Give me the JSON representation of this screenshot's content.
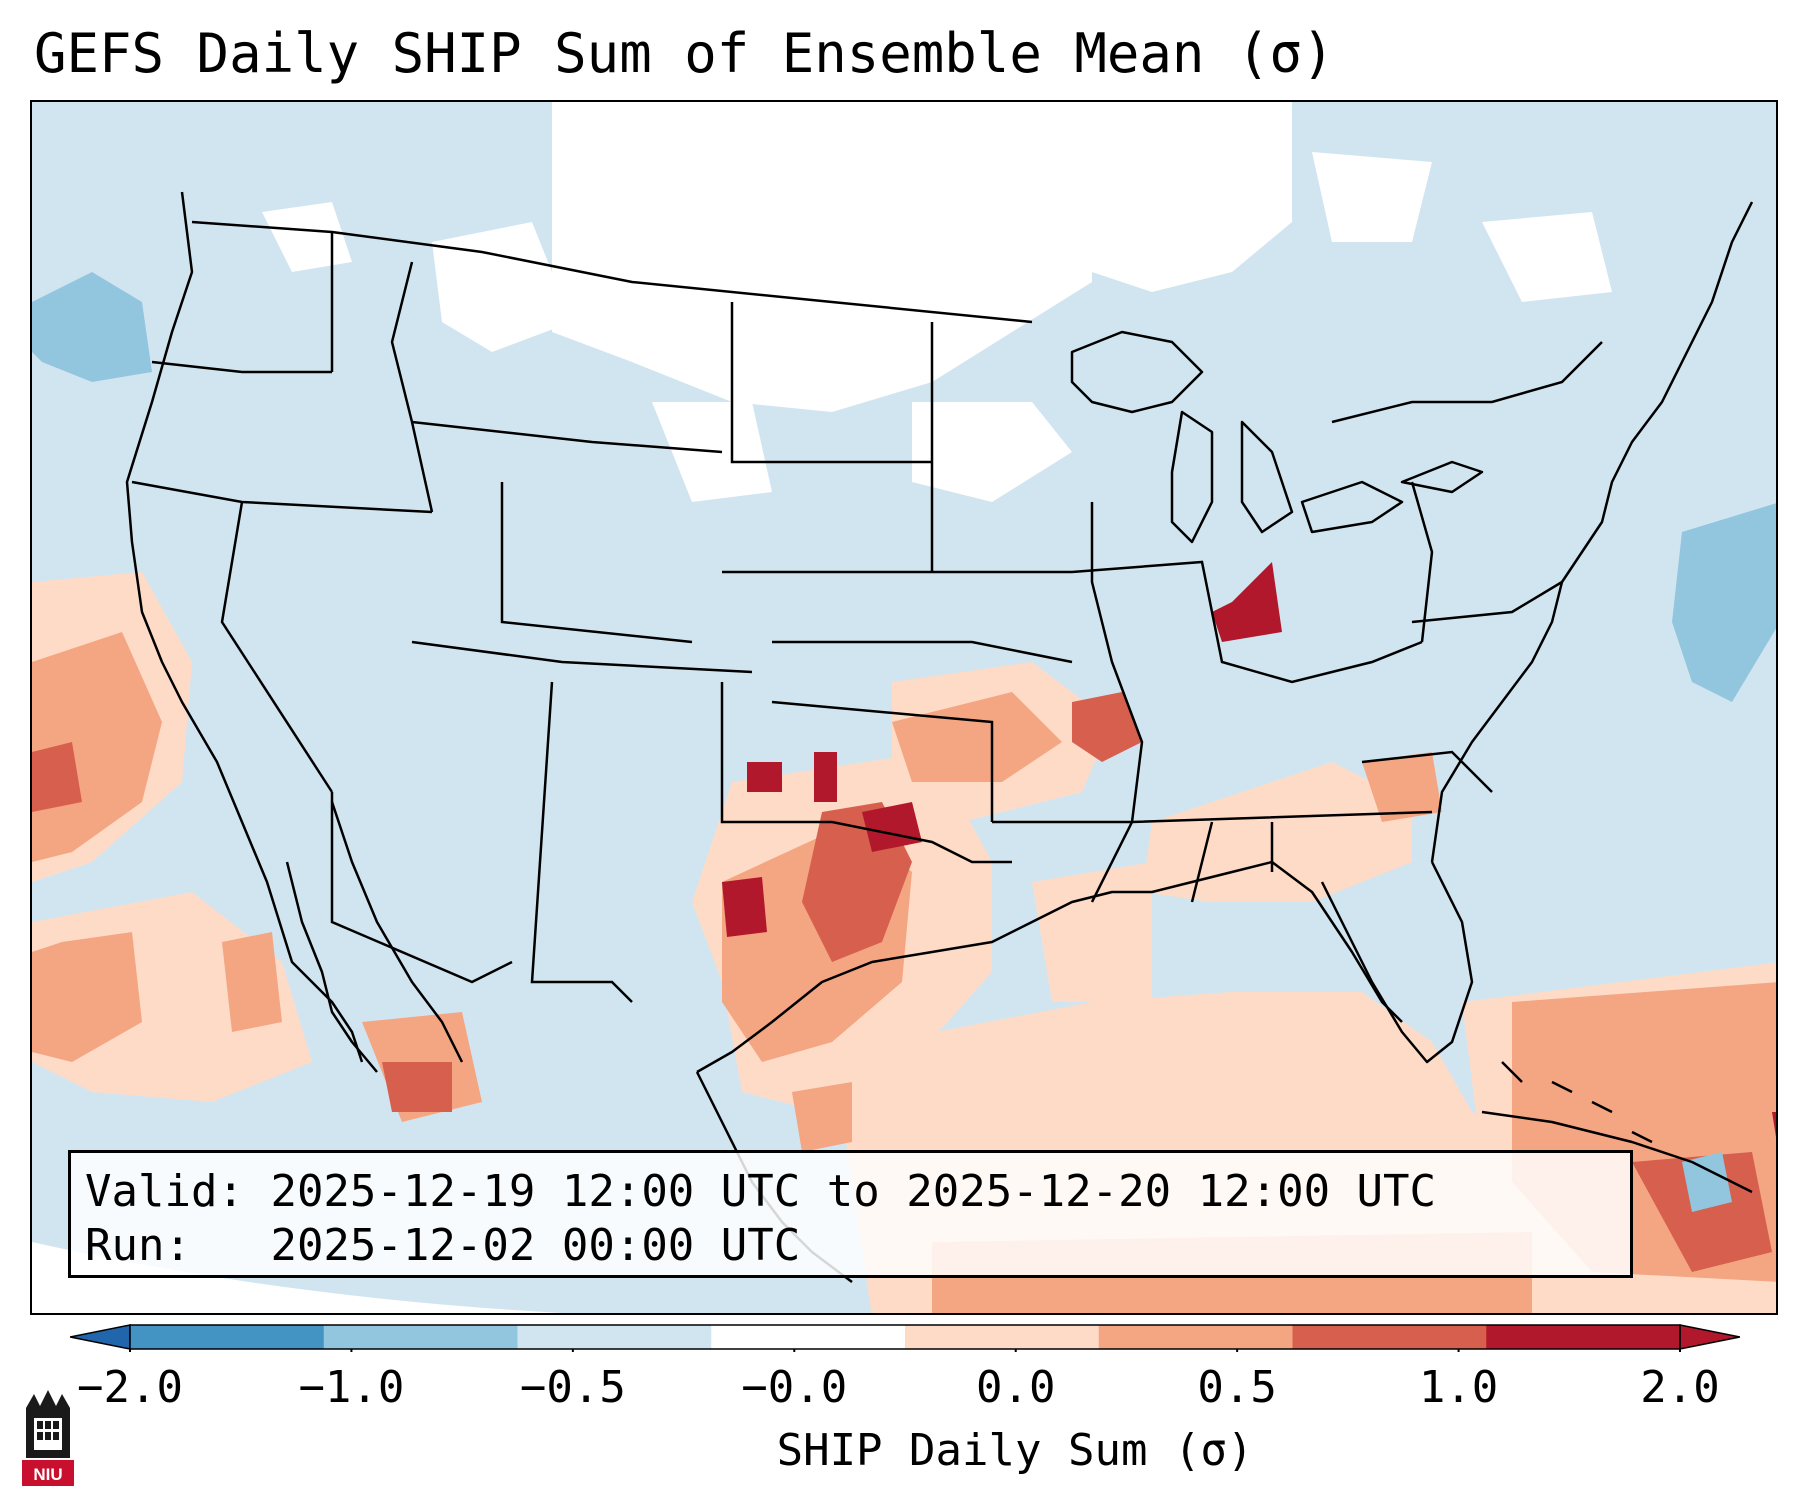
{
  "title": "GEFS Daily SHIP Sum of Ensemble Mean (σ)",
  "info": {
    "valid_label": "Valid:",
    "valid_value": "2025-12-19 12:00 UTC to 2025-12-20 12:00 UTC",
    "run_label": "Run:",
    "run_value": "2025-12-02 00:00 UTC"
  },
  "colorbar": {
    "label": "SHIP Daily Sum (σ)",
    "ticks": [
      "−2.0",
      "−1.0",
      "−0.5",
      "−0.0",
      "0.0",
      "0.5",
      "1.0",
      "2.0"
    ],
    "colors": {
      "below_min": "#2166ac",
      "bins": [
        "#4393c3",
        "#92c5de",
        "#d1e5f0",
        "#ffffff",
        "#fddbc7",
        "#f4a582",
        "#d6604d",
        "#b2182b"
      ],
      "above_max": "#b2182b"
    }
  },
  "logo": {
    "text": "NIU",
    "icon": "university-tower-icon"
  }
}
